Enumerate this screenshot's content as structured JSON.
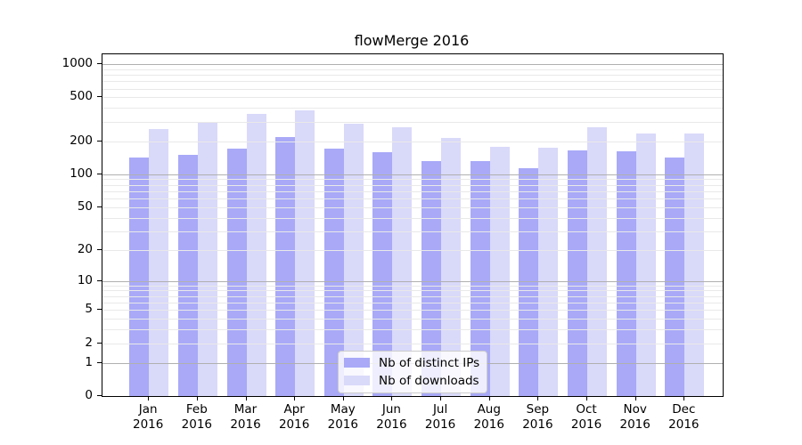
{
  "title": "flowMerge 2016",
  "legend": {
    "entries": [
      {
        "label": "Nb of distinct IPs",
        "series": "distinct_ips"
      },
      {
        "label": "Nb of downloads",
        "series": "downloads"
      }
    ]
  },
  "colors": {
    "distinct_ips": "#a9a9f8",
    "downloads": "#d9d9fa",
    "grid_major": "#b0b0b0",
    "grid_minor": "#e9e9e9",
    "axis": "#000000",
    "legend_border": "#cccccc"
  },
  "chart_data": {
    "type": "bar",
    "title": "flowMerge 2016",
    "x_categories": [
      {
        "month": "Jan",
        "year": "2016"
      },
      {
        "month": "Feb",
        "year": "2016"
      },
      {
        "month": "Mar",
        "year": "2016"
      },
      {
        "month": "Apr",
        "year": "2016"
      },
      {
        "month": "May",
        "year": "2016"
      },
      {
        "month": "Jun",
        "year": "2016"
      },
      {
        "month": "Jul",
        "year": "2016"
      },
      {
        "month": "Aug",
        "year": "2016"
      },
      {
        "month": "Sep",
        "year": "2016"
      },
      {
        "month": "Oct",
        "year": "2016"
      },
      {
        "month": "Nov",
        "year": "2016"
      },
      {
        "month": "Dec",
        "year": "2016"
      }
    ],
    "series": [
      {
        "name": "Nb of distinct IPs",
        "values": [
          143,
          151,
          170,
          219,
          171,
          158,
          131,
          131,
          113,
          165,
          162,
          143
        ]
      },
      {
        "name": "Nb of downloads",
        "values": [
          259,
          300,
          355,
          380,
          290,
          269,
          215,
          178,
          174,
          269,
          237,
          233
        ]
      }
    ],
    "xlabel": "",
    "ylabel": "",
    "y_scale": "log1p",
    "y_ticks": [
      0,
      1,
      2,
      5,
      10,
      20,
      50,
      100,
      200,
      500,
      1000
    ],
    "ylim": [
      0,
      1200
    ],
    "grid": "horizontal major and minor, drawn over bars",
    "legend_position": "lower center"
  }
}
